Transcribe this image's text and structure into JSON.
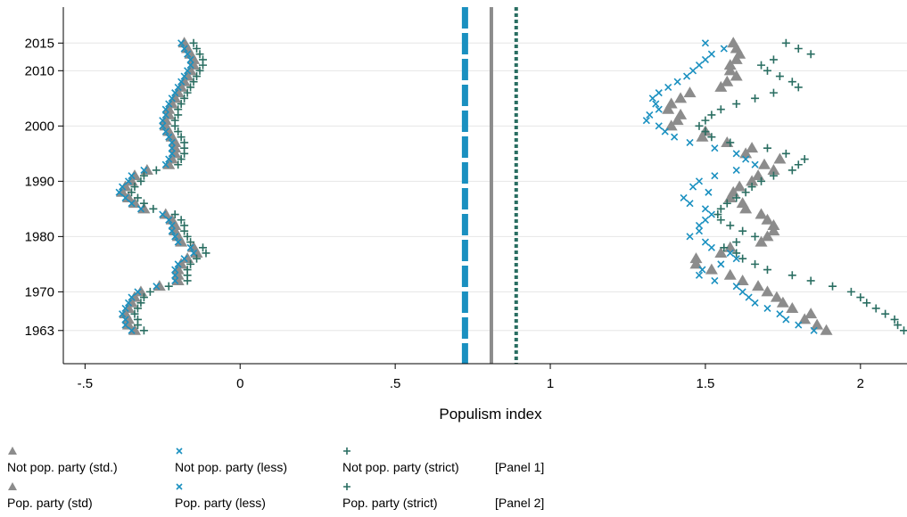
{
  "chart_data": {
    "type": "scatter",
    "xlabel": "Populism index",
    "x_ticks": [
      -0.5,
      0,
      0.5,
      1,
      1.5,
      2
    ],
    "x_tick_labels": [
      "-.5",
      "0",
      ".5",
      "1",
      "1.5",
      "2"
    ],
    "xlim": [
      -0.57,
      2.15
    ],
    "y_ticks": [
      1963,
      1970,
      1980,
      1990,
      2000,
      2010,
      2015
    ],
    "y_tick_labels": [
      "1963",
      "1970",
      "1980",
      "1990",
      "2000",
      "2010",
      "2015"
    ],
    "ylim": [
      1957,
      2021.5
    ],
    "grid": "horizontal",
    "legend_position": "bottom",
    "vertical_lines": [
      {
        "x": 0.725,
        "style": "dashed",
        "color": "#1a90c0"
      },
      {
        "x": 0.81,
        "style": "solid",
        "color": "#8c8c8c"
      },
      {
        "x": 0.89,
        "style": "dotted",
        "color": "#2a6e62"
      }
    ],
    "years": [
      2015,
      2014,
      2013,
      2012,
      2011,
      2010,
      2009,
      2008,
      2007,
      2006,
      2005,
      2004,
      2003,
      2002,
      2001,
      2000,
      1999,
      1998,
      1997,
      1996,
      1995,
      1994,
      1993,
      1992,
      1991,
      1990,
      1989,
      1988,
      1987,
      1986,
      1985,
      1984,
      1983,
      1982,
      1981,
      1980,
      1979,
      1978,
      1977,
      1976,
      1975,
      1974,
      1973,
      1972,
      1971,
      1970,
      1969,
      1968,
      1967,
      1966,
      1965,
      1964,
      1963
    ],
    "series": [
      {
        "name": "Not pop. party (std.)",
        "marker": "triangle",
        "color": "#8c8c8c",
        "x": [
          -0.18,
          -0.17,
          -0.16,
          -0.15,
          -0.15,
          -0.16,
          -0.17,
          -0.18,
          -0.19,
          -0.2,
          -0.21,
          -0.22,
          -0.23,
          -0.23,
          -0.24,
          -0.24,
          -0.23,
          -0.22,
          -0.21,
          -0.21,
          -0.21,
          -0.22,
          -0.23,
          -0.3,
          -0.34,
          -0.35,
          -0.37,
          -0.38,
          -0.36,
          -0.34,
          -0.31,
          -0.24,
          -0.22,
          -0.21,
          -0.21,
          -0.2,
          -0.19,
          -0.15,
          -0.14,
          -0.17,
          -0.19,
          -0.2,
          -0.2,
          -0.2,
          -0.26,
          -0.32,
          -0.34,
          -0.35,
          -0.36,
          -0.37,
          -0.36,
          -0.36,
          -0.34
        ]
      },
      {
        "name": "Not pop. party (less)",
        "marker": "x",
        "color": "#1a90c0",
        "x": [
          -0.19,
          -0.18,
          -0.17,
          -0.16,
          -0.16,
          -0.17,
          -0.18,
          -0.19,
          -0.2,
          -0.21,
          -0.22,
          -0.23,
          -0.24,
          -0.24,
          -0.25,
          -0.25,
          -0.24,
          -0.23,
          -0.22,
          -0.22,
          -0.22,
          -0.23,
          -0.24,
          -0.31,
          -0.35,
          -0.36,
          -0.38,
          -0.39,
          -0.37,
          -0.35,
          -0.32,
          -0.25,
          -0.23,
          -0.22,
          -0.22,
          -0.21,
          -0.2,
          -0.16,
          -0.15,
          -0.18,
          -0.2,
          -0.21,
          -0.21,
          -0.21,
          -0.27,
          -0.33,
          -0.35,
          -0.36,
          -0.37,
          -0.38,
          -0.37,
          -0.37,
          -0.35
        ]
      },
      {
        "name": "Not pop. party (strict)",
        "marker": "plus",
        "color": "#2a6e62",
        "x": [
          -0.15,
          -0.14,
          -0.13,
          -0.12,
          -0.12,
          -0.13,
          -0.14,
          -0.15,
          -0.16,
          -0.17,
          -0.18,
          -0.19,
          -0.2,
          -0.2,
          -0.21,
          -0.21,
          -0.2,
          -0.19,
          -0.18,
          -0.18,
          -0.18,
          -0.19,
          -0.2,
          -0.27,
          -0.31,
          -0.32,
          -0.34,
          -0.35,
          -0.33,
          -0.31,
          -0.28,
          -0.21,
          -0.19,
          -0.18,
          -0.18,
          -0.17,
          -0.16,
          -0.12,
          -0.11,
          -0.14,
          -0.16,
          -0.17,
          -0.17,
          -0.17,
          -0.23,
          -0.29,
          -0.31,
          -0.32,
          -0.33,
          -0.34,
          -0.33,
          -0.33,
          -0.31
        ]
      },
      {
        "name": "Pop. party (std)",
        "marker": "triangle",
        "color": "#8c8c8c",
        "x": [
          1.59,
          1.6,
          1.61,
          1.6,
          1.58,
          1.58,
          1.6,
          1.57,
          1.55,
          1.45,
          1.42,
          1.39,
          1.38,
          1.42,
          1.41,
          1.39,
          1.5,
          1.49,
          1.57,
          1.65,
          1.63,
          1.74,
          1.69,
          1.72,
          1.67,
          1.65,
          1.61,
          1.59,
          1.58,
          1.62,
          1.63,
          1.68,
          1.7,
          1.72,
          1.72,
          1.7,
          1.68,
          1.58,
          1.55,
          1.47,
          1.47,
          1.52,
          1.58,
          1.62,
          1.67,
          1.7,
          1.73,
          1.75,
          1.78,
          1.84,
          1.82,
          1.86,
          1.89
        ]
      },
      {
        "name": "Pop. party (less)",
        "marker": "x",
        "color": "#1a90c0",
        "x": [
          1.5,
          1.56,
          1.52,
          1.5,
          1.48,
          1.46,
          1.44,
          1.41,
          1.38,
          1.35,
          1.33,
          1.34,
          1.35,
          1.32,
          1.31,
          1.35,
          1.37,
          1.4,
          1.45,
          1.53,
          1.6,
          1.63,
          1.66,
          1.6,
          1.53,
          1.48,
          1.46,
          1.51,
          1.43,
          1.45,
          1.5,
          1.52,
          1.5,
          1.48,
          1.48,
          1.45,
          1.5,
          1.52,
          1.58,
          1.6,
          1.55,
          1.49,
          1.48,
          1.53,
          1.6,
          1.62,
          1.64,
          1.66,
          1.7,
          1.74,
          1.76,
          1.8,
          1.85
        ]
      },
      {
        "name": "Pop. party (strict)",
        "marker": "plus",
        "color": "#2a6e62",
        "x": [
          1.76,
          1.8,
          1.84,
          1.72,
          1.68,
          1.7,
          1.74,
          1.78,
          1.8,
          1.72,
          1.66,
          1.6,
          1.55,
          1.52,
          1.5,
          1.48,
          1.5,
          1.52,
          1.58,
          1.7,
          1.76,
          1.82,
          1.8,
          1.78,
          1.72,
          1.68,
          1.65,
          1.63,
          1.6,
          1.57,
          1.55,
          1.54,
          1.55,
          1.58,
          1.62,
          1.66,
          1.6,
          1.56,
          1.6,
          1.62,
          1.66,
          1.7,
          1.78,
          1.84,
          1.91,
          1.97,
          2.0,
          2.02,
          2.05,
          2.08,
          2.11,
          2.12,
          2.14
        ]
      }
    ]
  },
  "legend": {
    "items": [
      {
        "label": "Not pop. party (std.)",
        "marker": "triangle"
      },
      {
        "label": "Not pop. party (less)",
        "marker": "x"
      },
      {
        "label": "Not pop. party (strict)",
        "marker": "plus"
      },
      {
        "label": "Pop. party (std)",
        "marker": "triangle"
      },
      {
        "label": "Pop. party (less)",
        "marker": "x"
      },
      {
        "label": "Pop. party (strict)",
        "marker": "plus"
      }
    ],
    "panel1": "[Panel 1]",
    "panel2": "[Panel 2]"
  },
  "colors": {
    "grey": "#8c8c8c",
    "blue": "#1a90c0",
    "green": "#2a6e62",
    "grid": "#e6e6e6"
  }
}
